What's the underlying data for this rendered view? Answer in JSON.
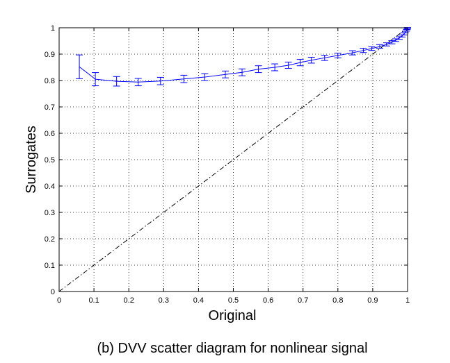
{
  "chart_data": {
    "type": "line",
    "title": "",
    "xlabel": "Original",
    "ylabel": "Surrogates",
    "caption": "(b) DVV scatter diagram for nonlinear signal",
    "xlim": [
      0,
      1
    ],
    "ylim": [
      0,
      1
    ],
    "grid": true,
    "x_ticks": [
      "0",
      "0.1",
      "0.2",
      "0.3",
      "0.4",
      "0.5",
      "0.6",
      "0.7",
      "0.8",
      "0.9",
      "1"
    ],
    "y_ticks": [
      "0",
      "0.1",
      "0.2",
      "0.3",
      "0.4",
      "0.5",
      "0.6",
      "0.7",
      "0.8",
      "0.9",
      "1"
    ],
    "colors": {
      "series": "#0000ff",
      "reference": "#000000",
      "grid": "#000000"
    },
    "series": [
      {
        "style": "solid line with error bars",
        "points": [
          {
            "x": 0.058,
            "y": 0.852,
            "err": 0.045
          },
          {
            "x": 0.104,
            "y": 0.805,
            "err": 0.025
          },
          {
            "x": 0.165,
            "y": 0.797,
            "err": 0.018
          },
          {
            "x": 0.227,
            "y": 0.794,
            "err": 0.014
          },
          {
            "x": 0.291,
            "y": 0.798,
            "err": 0.014
          },
          {
            "x": 0.358,
            "y": 0.806,
            "err": 0.014
          },
          {
            "x": 0.418,
            "y": 0.813,
            "err": 0.013
          },
          {
            "x": 0.477,
            "y": 0.823,
            "err": 0.013
          },
          {
            "x": 0.525,
            "y": 0.831,
            "err": 0.013
          },
          {
            "x": 0.572,
            "y": 0.843,
            "err": 0.013
          },
          {
            "x": 0.619,
            "y": 0.85,
            "err": 0.013
          },
          {
            "x": 0.658,
            "y": 0.858,
            "err": 0.012
          },
          {
            "x": 0.692,
            "y": 0.868,
            "err": 0.012
          },
          {
            "x": 0.724,
            "y": 0.877,
            "err": 0.011
          },
          {
            "x": 0.762,
            "y": 0.886,
            "err": 0.01
          },
          {
            "x": 0.8,
            "y": 0.895,
            "err": 0.009
          },
          {
            "x": 0.842,
            "y": 0.905,
            "err": 0.008
          },
          {
            "x": 0.873,
            "y": 0.914,
            "err": 0.008
          },
          {
            "x": 0.897,
            "y": 0.921,
            "err": 0.007
          },
          {
            "x": 0.92,
            "y": 0.929,
            "err": 0.007
          },
          {
            "x": 0.94,
            "y": 0.937,
            "err": 0.006
          },
          {
            "x": 0.955,
            "y": 0.945,
            "err": 0.006
          },
          {
            "x": 0.966,
            "y": 0.953,
            "err": 0.005
          },
          {
            "x": 0.976,
            "y": 0.961,
            "err": 0.005
          },
          {
            "x": 0.984,
            "y": 0.969,
            "err": 0.004
          },
          {
            "x": 0.99,
            "y": 0.977,
            "err": 0.004
          },
          {
            "x": 0.994,
            "y": 0.984,
            "err": 0.003
          },
          {
            "x": 0.997,
            "y": 0.99,
            "err": 0.003
          },
          {
            "x": 0.999,
            "y": 0.995,
            "err": 0.002
          },
          {
            "x": 1.0,
            "y": 0.999,
            "err": 0.002
          }
        ]
      },
      {
        "style": "dash-dot reference line",
        "points": [
          {
            "x": 0,
            "y": 0
          },
          {
            "x": 1,
            "y": 1
          }
        ]
      }
    ]
  }
}
